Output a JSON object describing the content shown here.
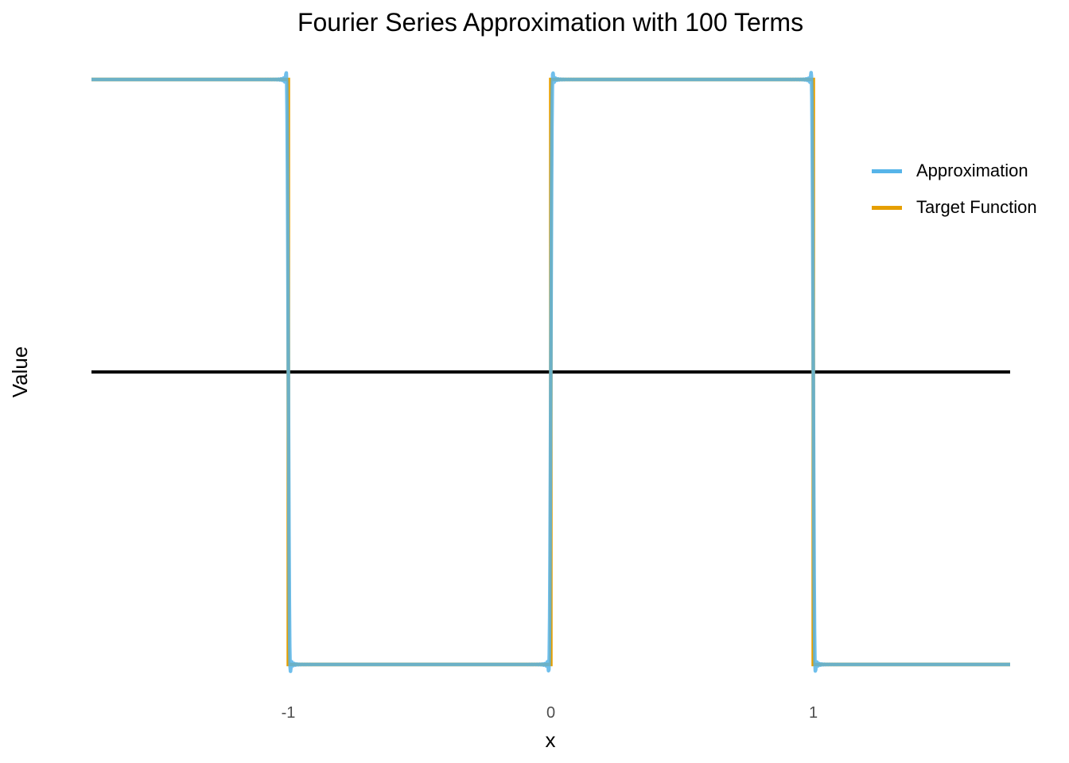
{
  "chart_data": {
    "type": "line",
    "title": "Fourier Series Approximation with 100 Terms",
    "xlabel": "x",
    "ylabel": "Value",
    "xlim": [
      -1.75,
      1.75
    ],
    "ylim": [
      -1.08,
      1.08
    ],
    "x_ticks": [
      "-1",
      "0",
      "1"
    ],
    "x_tick_values": [
      -1,
      0,
      1
    ],
    "grid": false,
    "legend": {
      "position": "right",
      "entries": [
        "Approximation",
        "Target Function"
      ]
    },
    "series": [
      {
        "name": "Target Function",
        "color": "#E69F00",
        "kind": "square-wave",
        "period": 2,
        "amplitude": 1,
        "positive_intervals": [
          [
            -1.75,
            -1
          ],
          [
            0,
            1
          ]
        ],
        "negative_intervals": [
          [
            -1,
            0
          ],
          [
            1,
            1.75
          ]
        ]
      },
      {
        "name": "Approximation",
        "color": "#56B4E9",
        "kind": "fourier-partial-sum",
        "terms": 100
      }
    ],
    "reference_line": {
      "y": 0,
      "color": "#000000"
    }
  }
}
